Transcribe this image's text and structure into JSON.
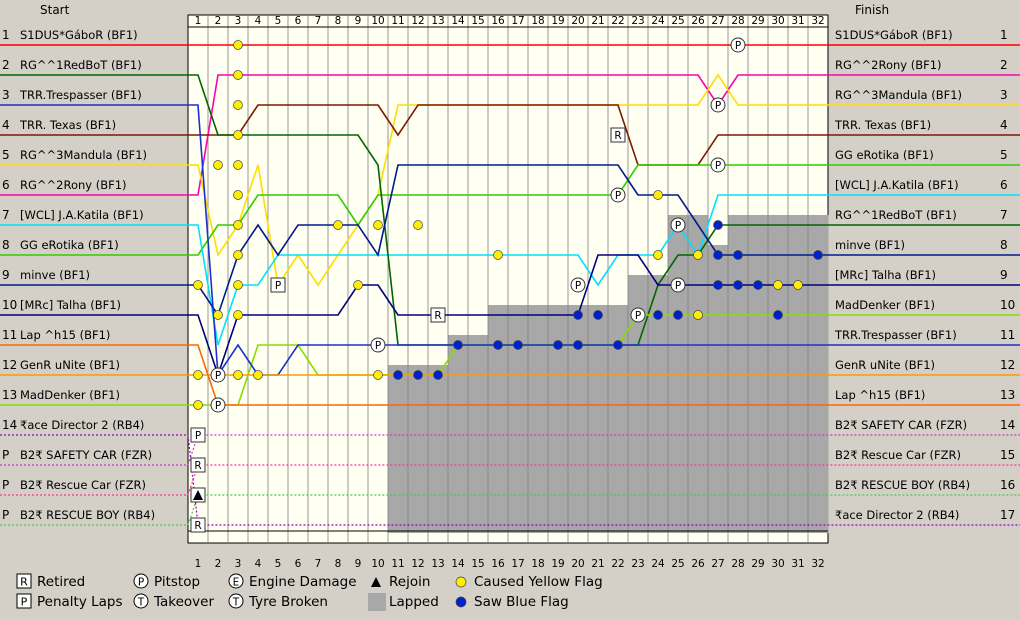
{
  "chart_data": {
    "type": "line",
    "title": "",
    "header_left": "Start",
    "header_right": "Finish",
    "laps": [
      1,
      2,
      3,
      4,
      5,
      6,
      7,
      8,
      9,
      10,
      11,
      12,
      13,
      14,
      15,
      16,
      17,
      18,
      19,
      20,
      21,
      22,
      23,
      24,
      25,
      26,
      27,
      28,
      29,
      30,
      31,
      32
    ],
    "start_positions": [
      "1",
      "2",
      "3",
      "4",
      "5",
      "6",
      "7",
      "8",
      "9",
      "10",
      "11",
      "12",
      "13",
      "14",
      "P",
      "P",
      "P"
    ],
    "start_labels": [
      "S1DUS*GáboR (BF1)",
      "RG^^1RedBoT (BF1)",
      "TRR.Trespasser (BF1)",
      "TRR. Texas (BF1)",
      "RG^^3Mandula (BF1)",
      "RG^^2Rony (BF1)",
      "[WCL] J.A.Katila (BF1)",
      "GG eRotika (BF1)",
      "minve (BF1)",
      "[MRc] Talha (BF1)",
      "Lap ^h15 (BF1)",
      "GenR uNite (BF1)",
      "MadDenker (BF1)",
      "₹ace Director 2 (RB4)",
      "B2₹ SAFETY CAR (FZR)",
      "B2₹ Rescue Car (FZR)",
      "B2₹ RESCUE BOY (RB4)"
    ],
    "finish_positions": [
      "1",
      "2",
      "3",
      "4",
      "5",
      "6",
      "7",
      "8",
      "9",
      "10",
      "11",
      "12",
      "13",
      "14",
      "15",
      "16",
      "17"
    ],
    "finish_labels": [
      "S1DUS*GáboR (BF1)",
      "RG^^2Rony (BF1)",
      "RG^^3Mandula (BF1)",
      "TRR. Texas (BF1)",
      "GG eRotika (BF1)",
      "[WCL] J.A.Katila (BF1)",
      "RG^^1RedBoT (BF1)",
      "minve (BF1)",
      "[MRc] Talha (BF1)",
      "MadDenker (BF1)",
      "TRR.Trespasser (BF1)",
      "GenR uNite (BF1)",
      "Lap ^h15 (BF1)",
      "B2₹ SAFETY CAR (FZR)",
      "B2₹ Rescue Car (FZR)",
      "B2₹ RESCUE BOY (RB4)",
      "₹ace Director 2 (RB4)"
    ],
    "series": [
      {
        "name": "S1DUS*GáboR (BF1)",
        "color": "#ff0000",
        "positions": [
          1,
          1,
          1,
          1,
          1,
          1,
          1,
          1,
          1,
          1,
          1,
          1,
          1,
          1,
          1,
          1,
          1,
          1,
          1,
          1,
          1,
          1,
          1,
          1,
          1,
          1,
          1,
          1,
          1,
          1,
          1,
          1
        ]
      },
      {
        "name": "RG^^2Rony (BF1)",
        "color": "#ff00aa",
        "positions": [
          6,
          2,
          2,
          2,
          2,
          2,
          2,
          2,
          2,
          2,
          2,
          2,
          2,
          2,
          2,
          2,
          2,
          2,
          2,
          2,
          2,
          2,
          2,
          2,
          2,
          2,
          3,
          2,
          2,
          2,
          2,
          2
        ]
      },
      {
        "name": "RG^^3Mandula (BF1)",
        "color": "#ffdd00",
        "positions": [
          5,
          8,
          7,
          5,
          9,
          8,
          9,
          8,
          7,
          6,
          3,
          3,
          3,
          3,
          3,
          3,
          3,
          3,
          3,
          3,
          3,
          3,
          3,
          3,
          3,
          3,
          2,
          3,
          3,
          3,
          3,
          3
        ]
      },
      {
        "name": "TRR. Texas (BF1)",
        "color": "#7b1a00",
        "positions": [
          4,
          4,
          4,
          3,
          3,
          3,
          3,
          3,
          3,
          3,
          4,
          3,
          3,
          3,
          3,
          3,
          3,
          3,
          3,
          3,
          3,
          3,
          5,
          5,
          5,
          5,
          4,
          4,
          4,
          4,
          4,
          4
        ]
      },
      {
        "name": "GG eRotika (BF1)",
        "color": "#33cc00",
        "positions": [
          8,
          7,
          7,
          6,
          6,
          6,
          6,
          6,
          7,
          6,
          6,
          6,
          6,
          6,
          6,
          6,
          6,
          6,
          6,
          6,
          6,
          6,
          5,
          5,
          5,
          5,
          5,
          5,
          5,
          5,
          5,
          5
        ]
      },
      {
        "name": "[WCL] J.A.Katila (BF1)",
        "color": "#00e0ff",
        "positions": [
          7,
          11,
          9,
          9,
          8,
          8,
          8,
          8,
          8,
          8,
          8,
          8,
          8,
          8,
          8,
          8,
          8,
          8,
          8,
          8,
          9,
          8,
          8,
          8,
          7,
          8,
          6,
          6,
          6,
          6,
          6,
          6
        ]
      },
      {
        "name": "RG^^1RedBoT (BF1)",
        "color": "#006600",
        "positions": [
          2,
          4,
          4,
          4,
          4,
          4,
          4,
          4,
          4,
          5,
          11,
          11,
          11,
          11,
          11,
          11,
          11,
          11,
          11,
          11,
          11,
          11,
          11,
          9,
          8,
          8,
          7,
          7,
          7,
          7,
          7,
          7
        ]
      },
      {
        "name": "minve (BF1)",
        "color": "#001b8c",
        "positions": [
          9,
          10,
          8,
          7,
          8,
          7,
          7,
          7,
          7,
          8,
          5,
          5,
          5,
          5,
          5,
          5,
          5,
          5,
          5,
          5,
          5,
          5,
          6,
          6,
          6,
          7,
          8,
          8,
          8,
          8,
          8,
          8
        ]
      },
      {
        "name": "[MRc] Talha (BF1)",
        "color": "#000080",
        "positions": [
          10,
          12,
          10,
          10,
          10,
          10,
          10,
          10,
          9,
          9,
          10,
          10,
          10,
          10,
          10,
          10,
          10,
          10,
          10,
          10,
          8,
          8,
          8,
          9,
          9,
          9,
          9,
          9,
          9,
          9,
          9,
          9
        ]
      },
      {
        "name": "MadDenker (BF1)",
        "color": "#88dd00",
        "positions": [
          13,
          13,
          13,
          11,
          11,
          11,
          12,
          12,
          12,
          12,
          12,
          12,
          12,
          11,
          11,
          11,
          11,
          11,
          11,
          11,
          11,
          11,
          10,
          10,
          10,
          10,
          10,
          10,
          10,
          10,
          10,
          10
        ]
      },
      {
        "name": "TRR.Trespasser (BF1)",
        "color": "#1a33cc",
        "positions": [
          3,
          12,
          11,
          12,
          12,
          11,
          11,
          11,
          11,
          11,
          11,
          11,
          11,
          11,
          11,
          11,
          11,
          11,
          11,
          11,
          11,
          11,
          11,
          11,
          11,
          11,
          11,
          11,
          11,
          11,
          11,
          11
        ]
      },
      {
        "name": "GenR uNite (BF1)",
        "color": "#ff9900",
        "positions": [
          12,
          12,
          12,
          12,
          12,
          12,
          12,
          12,
          12,
          12,
          12,
          12,
          12,
          12,
          12,
          12,
          12,
          12,
          12,
          12,
          12,
          12,
          12,
          12,
          12,
          12,
          12,
          12,
          12,
          12,
          12,
          12
        ]
      },
      {
        "name": "Lap ^h15 (BF1)",
        "color": "#ff6600",
        "positions": [
          11,
          13,
          13,
          13,
          13,
          13,
          13,
          13,
          13,
          13,
          13,
          13,
          13,
          13,
          13,
          13,
          13,
          13,
          13,
          13,
          13,
          13,
          13,
          13,
          13,
          13,
          13,
          13,
          13,
          13,
          13,
          13
        ]
      },
      {
        "name": "B2₹ SAFETY CAR (FZR)",
        "color": "#cc33cc",
        "positions": [
          14,
          14,
          14,
          14,
          14,
          14,
          14,
          14,
          14,
          14,
          14,
          14,
          14,
          14,
          14,
          14,
          14,
          14,
          14,
          14,
          14,
          14,
          14,
          14,
          14,
          14,
          14,
          14,
          14,
          14,
          14,
          14
        ]
      },
      {
        "name": "B2₹ Rescue Car (FZR)",
        "color": "#ff3399",
        "positions": [
          15,
          15,
          15,
          15,
          15,
          15,
          15,
          15,
          15,
          15,
          15,
          15,
          15,
          15,
          15,
          15,
          15,
          15,
          15,
          15,
          15,
          15,
          15,
          15,
          15,
          15,
          15,
          15,
          15,
          15,
          15,
          15
        ]
      },
      {
        "name": "B2₹ RESCUE BOY (RB4)",
        "color": "#44cc44",
        "positions": [
          16,
          16,
          16,
          16,
          16,
          16,
          16,
          16,
          16,
          16,
          16,
          16,
          16,
          16,
          16,
          16,
          16,
          16,
          16,
          16,
          16,
          16,
          16,
          16,
          16,
          16,
          16,
          16,
          16,
          16,
          16,
          16
        ]
      },
      {
        "name": "₹ace Director 2 (RB4)",
        "color": "#9900cc",
        "positions": [
          17,
          17,
          17,
          17,
          17,
          17,
          17,
          17,
          17,
          17,
          17,
          17,
          17,
          17,
          17,
          17,
          17,
          17,
          17,
          17,
          17,
          17,
          17,
          17,
          17,
          17,
          17,
          17,
          17,
          17,
          17,
          17
        ]
      }
    ],
    "lapped_area": [
      {
        "lap": 11,
        "from_position": 12
      },
      {
        "lap": 12,
        "from_position": 12
      },
      {
        "lap": 13,
        "from_position": 12
      },
      {
        "lap": 14,
        "from_position": 11
      },
      {
        "lap": 15,
        "from_position": 11
      },
      {
        "lap": 16,
        "from_position": 10
      },
      {
        "lap": 17,
        "from_position": 10
      },
      {
        "lap": 18,
        "from_position": 10
      },
      {
        "lap": 19,
        "from_position": 10
      },
      {
        "lap": 20,
        "from_position": 10
      },
      {
        "lap": 21,
        "from_position": 10
      },
      {
        "lap": 22,
        "from_position": 10
      },
      {
        "lap": 23,
        "from_position": 9
      },
      {
        "lap": 24,
        "from_position": 9
      },
      {
        "lap": 25,
        "from_position": 7
      },
      {
        "lap": 26,
        "from_position": 7
      },
      {
        "lap": 27,
        "from_position": 8
      },
      {
        "lap": 28,
        "from_position": 7
      },
      {
        "lap": 29,
        "from_position": 7
      },
      {
        "lap": 30,
        "from_position": 7
      },
      {
        "lap": 31,
        "from_position": 7
      },
      {
        "lap": 32,
        "from_position": 7
      }
    ],
    "events": [
      {
        "type": "pitstop",
        "lap": 2,
        "position": 12
      },
      {
        "type": "pitstop",
        "lap": 2,
        "position": 13
      },
      {
        "type": "pitstop",
        "lap": 10,
        "position": 11
      },
      {
        "type": "pitstop",
        "lap": 13,
        "position": 10
      },
      {
        "type": "pitstop",
        "lap": 20,
        "position": 9
      },
      {
        "type": "pitstop",
        "lap": 22,
        "position": 6
      },
      {
        "type": "pitstop",
        "lap": 23,
        "position": 10
      },
      {
        "type": "pitstop",
        "lap": 25,
        "position": 7
      },
      {
        "type": "pitstop",
        "lap": 25,
        "position": 9
      },
      {
        "type": "pitstop",
        "lap": 27,
        "position": 3
      },
      {
        "type": "pitstop",
        "lap": 27,
        "position": 5
      },
      {
        "type": "pitstop",
        "lap": 28,
        "position": 1
      },
      {
        "type": "retired",
        "lap": 13,
        "position": 10
      },
      {
        "type": "retired",
        "lap": 22,
        "position": 4
      },
      {
        "type": "retired",
        "lap": 1,
        "position": 15
      },
      {
        "type": "retired",
        "lap": 1,
        "position": 17
      },
      {
        "type": "penalty",
        "lap": 5,
        "position": 9
      },
      {
        "type": "penalty",
        "lap": 1,
        "position": 14
      },
      {
        "type": "rejoin",
        "lap": 1,
        "position": 16
      },
      {
        "type": "yellow",
        "lap": 3,
        "position": 1
      },
      {
        "type": "yellow",
        "lap": 3,
        "position": 2
      },
      {
        "type": "yellow",
        "lap": 3,
        "position": 3
      },
      {
        "type": "yellow",
        "lap": 3,
        "position": 4
      },
      {
        "type": "yellow",
        "lap": 2,
        "position": 5
      },
      {
        "type": "yellow",
        "lap": 3,
        "position": 5
      },
      {
        "type": "yellow",
        "lap": 3,
        "position": 6
      },
      {
        "type": "yellow",
        "lap": 3,
        "position": 7
      },
      {
        "type": "yellow",
        "lap": 3,
        "position": 8
      },
      {
        "type": "yellow",
        "lap": 1,
        "position": 9
      },
      {
        "type": "yellow",
        "lap": 3,
        "position": 9
      },
      {
        "type": "yellow",
        "lap": 3,
        "position": 10
      },
      {
        "type": "yellow",
        "lap": 2,
        "position": 10
      },
      {
        "type": "yellow",
        "lap": 1,
        "position": 12
      },
      {
        "type": "yellow",
        "lap": 3,
        "position": 12
      },
      {
        "type": "yellow",
        "lap": 4,
        "position": 12
      },
      {
        "type": "yellow",
        "lap": 1,
        "position": 13
      },
      {
        "type": "yellow",
        "lap": 8,
        "position": 7
      },
      {
        "type": "yellow",
        "lap": 10,
        "position": 7
      },
      {
        "type": "yellow",
        "lap": 12,
        "position": 7
      },
      {
        "type": "yellow",
        "lap": 9,
        "position": 9
      },
      {
        "type": "yellow",
        "lap": 10,
        "position": 12
      },
      {
        "type": "yellow",
        "lap": 16,
        "position": 8
      },
      {
        "type": "yellow",
        "lap": 24,
        "position": 6
      },
      {
        "type": "yellow",
        "lap": 24,
        "position": 8
      },
      {
        "type": "yellow",
        "lap": 26,
        "position": 8
      },
      {
        "type": "yellow",
        "lap": 30,
        "position": 9
      },
      {
        "type": "yellow",
        "lap": 31,
        "position": 9
      },
      {
        "type": "yellow",
        "lap": 26,
        "position": 10
      },
      {
        "type": "blue",
        "lap": 11,
        "position": 12
      },
      {
        "type": "blue",
        "lap": 12,
        "position": 12
      },
      {
        "type": "blue",
        "lap": 13,
        "position": 12
      },
      {
        "type": "blue",
        "lap": 14,
        "position": 11
      },
      {
        "type": "blue",
        "lap": 16,
        "position": 11
      },
      {
        "type": "blue",
        "lap": 17,
        "position": 11
      },
      {
        "type": "blue",
        "lap": 19,
        "position": 11
      },
      {
        "type": "blue",
        "lap": 20,
        "position": 11
      },
      {
        "type": "blue",
        "lap": 20,
        "position": 10
      },
      {
        "type": "blue",
        "lap": 21,
        "position": 10
      },
      {
        "type": "blue",
        "lap": 22,
        "position": 11
      },
      {
        "type": "blue",
        "lap": 24,
        "position": 10
      },
      {
        "type": "blue",
        "lap": 25,
        "position": 10
      },
      {
        "type": "blue",
        "lap": 27,
        "position": 7
      },
      {
        "type": "blue",
        "lap": 27,
        "position": 8
      },
      {
        "type": "blue",
        "lap": 27,
        "position": 9
      },
      {
        "type": "blue",
        "lap": 28,
        "position": 8
      },
      {
        "type": "blue",
        "lap": 28,
        "position": 9
      },
      {
        "type": "blue",
        "lap": 29,
        "position": 9
      },
      {
        "type": "blue",
        "lap": 30,
        "position": 10
      },
      {
        "type": "blue",
        "lap": 32,
        "position": 8
      }
    ],
    "legend": [
      {
        "symbol": "R",
        "label": "Retired"
      },
      {
        "symbol": "P",
        "label": "Penalty Laps"
      },
      {
        "symbol": "P",
        "label": "Pitstop"
      },
      {
        "symbol": "T",
        "label": "Takeover"
      },
      {
        "symbol": "E",
        "label": "Engine Damage"
      },
      {
        "symbol": "T",
        "label": "Tyre Broken"
      },
      {
        "symbol": "▲",
        "label": "Rejoin"
      },
      {
        "symbol": "",
        "label": "Lapped"
      },
      {
        "symbol": "",
        "label": "Caused Yellow Flag"
      },
      {
        "symbol": "",
        "label": "Saw Blue Flag"
      }
    ],
    "colors": {
      "background": "#d4d0c8",
      "plot_background": "#fffff2",
      "gridline": "#808080",
      "lapped": "#a8a8a8",
      "yellow_flag": "#ffee00",
      "blue_flag": "#0022cc"
    },
    "grid": true,
    "legend_position": "bottom-left"
  }
}
